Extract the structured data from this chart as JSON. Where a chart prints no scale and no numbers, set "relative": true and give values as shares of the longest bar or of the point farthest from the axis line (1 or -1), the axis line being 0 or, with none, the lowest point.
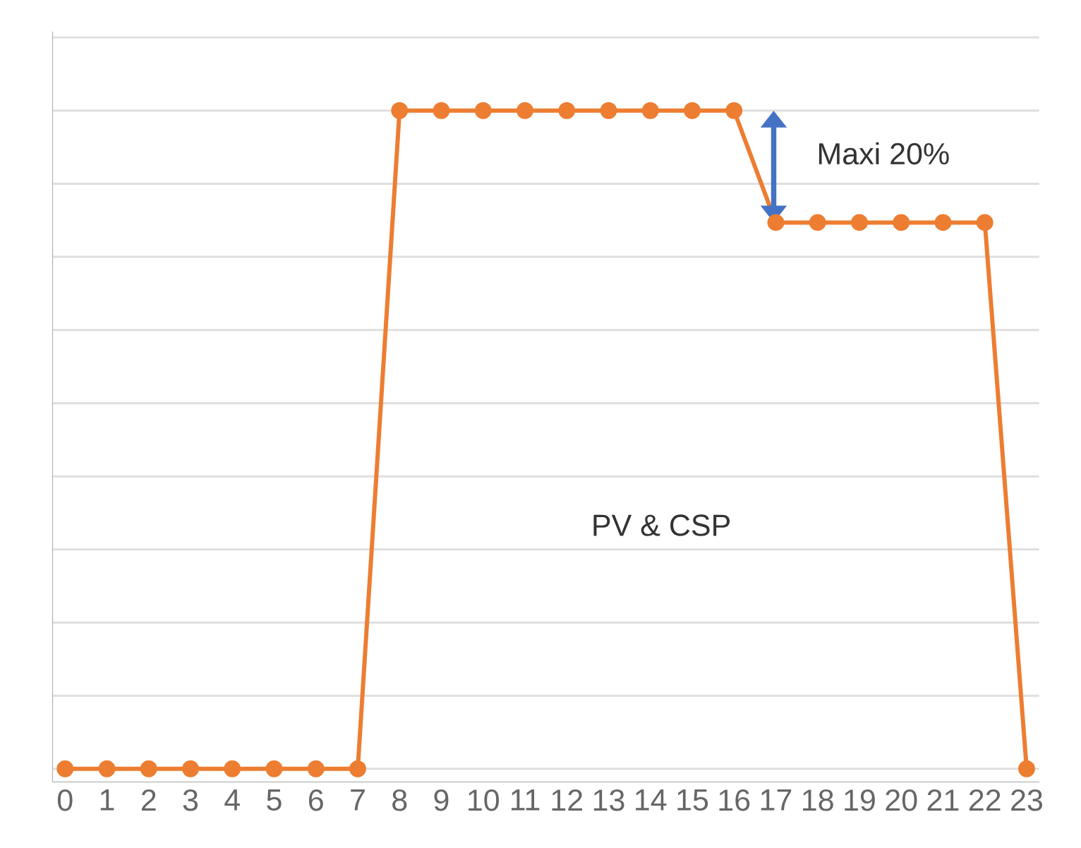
{
  "chart_data": {
    "type": "line",
    "relative": true,
    "categories": [
      "0",
      "1",
      "2",
      "3",
      "4",
      "5",
      "6",
      "7",
      "8",
      "9",
      "10",
      "11",
      "12",
      "13",
      "14",
      "15",
      "16",
      "17",
      "18",
      "19",
      "20",
      "21",
      "22",
      "23"
    ],
    "series": [
      {
        "name": "PV & CSP",
        "color": "#ed7d31",
        "values": [
          0,
          0,
          0,
          0,
          0,
          0,
          0,
          0,
          1,
          1,
          1,
          1,
          1,
          1,
          1,
          1,
          1,
          0.83,
          0.83,
          0.83,
          0.83,
          0.83,
          0.83,
          0
        ]
      }
    ],
    "annotations": [
      "Maxi 20%"
    ],
    "grid": "y",
    "marker": "circle",
    "line_style": "solid"
  }
}
